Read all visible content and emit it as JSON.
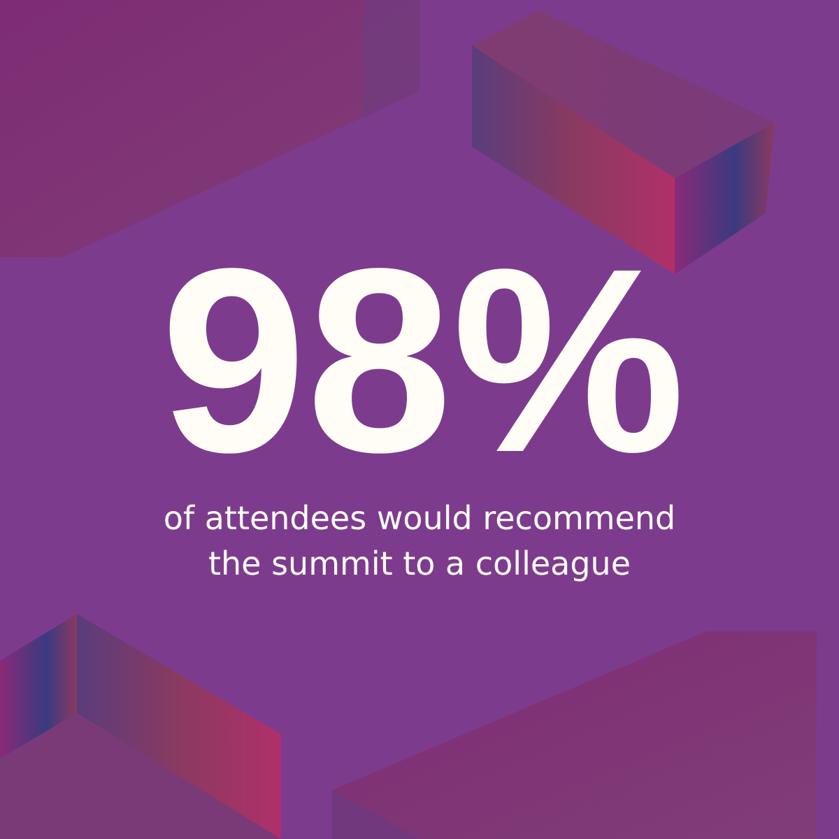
{
  "stat": "98%",
  "caption": {
    "lines": [
      "of attendees would recommend",
      "the summit to a colleague"
    ]
  }
}
